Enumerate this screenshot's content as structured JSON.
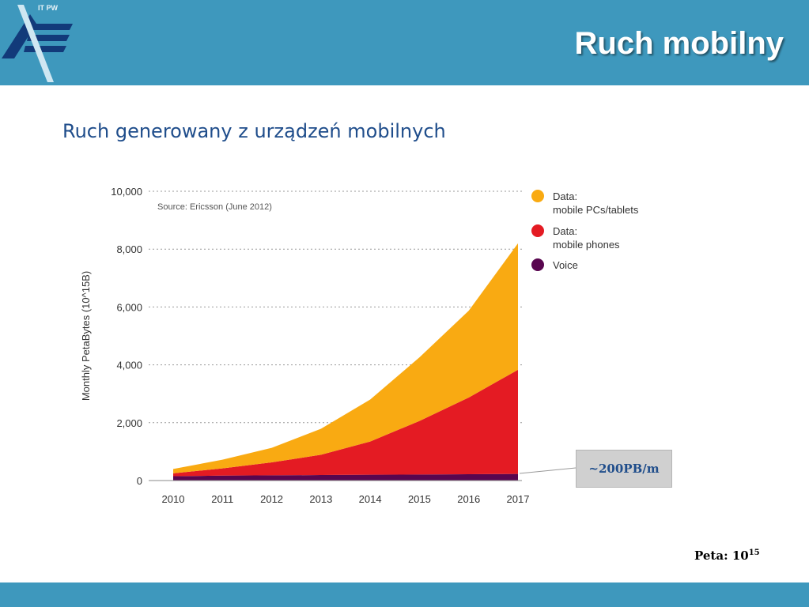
{
  "header": {
    "logo_text": "IT PW",
    "title": "Ruch mobilny"
  },
  "subtitle": "Ruch generowany z urządzeń mobilnych",
  "callout": "~200PB/m",
  "footnote": {
    "label": "Peta: 10",
    "exponent": "15"
  },
  "colors": {
    "bar": "#3e98bd",
    "data_pcs": "#f9aa12",
    "data_phones": "#e41b23",
    "voice": "#59064f",
    "subtitle": "#1f4d8b"
  },
  "chart_data": {
    "type": "area",
    "stacked": true,
    "x": [
      "2010",
      "2011",
      "2012",
      "2013",
      "2014",
      "2015",
      "2016",
      "2017"
    ],
    "series": [
      {
        "name": "Voice",
        "color": "#59064f",
        "values": [
          150,
          170,
          180,
          190,
          200,
          210,
          220,
          230
        ]
      },
      {
        "name": "Data:\nmobile phones",
        "color": "#e41b23",
        "values": [
          100,
          250,
          450,
          700,
          1150,
          1850,
          2650,
          3600
        ]
      },
      {
        "name": "Data:\nmobile PCs/tablets",
        "color": "#f9aa12",
        "values": [
          150,
          300,
          500,
          900,
          1450,
          2200,
          3000,
          4370
        ]
      }
    ],
    "legend_order": [
      "Data:\nmobile PCs/tablets",
      "Data:\nmobile phones",
      "Voice"
    ],
    "annotation": "Source: Ericsson (June 2012)",
    "ylabel": "Monthly PetaBytes (10^15B)",
    "ylim": [
      0,
      10000
    ],
    "yticks": [
      "0",
      "2,000",
      "4,000",
      "6,000",
      "8,000",
      "10,000"
    ],
    "grid": true,
    "legend_position": "right"
  }
}
